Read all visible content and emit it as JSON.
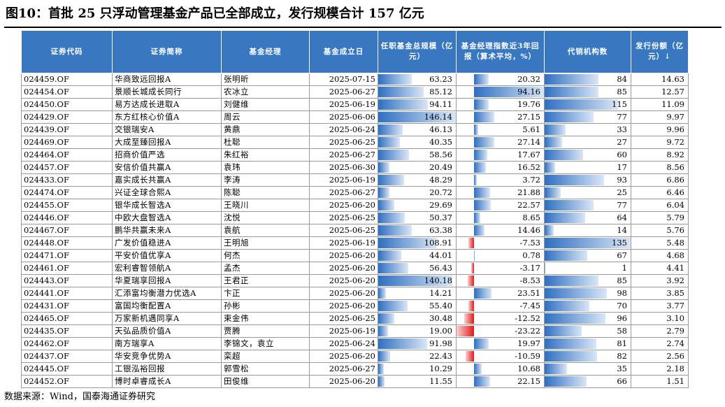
{
  "title": "图10：首批 25 只浮动管理基金产品已全部成立，发行规模合计 157 亿元",
  "source": "数据来源：Wind，国泰海通证券研究",
  "colors": {
    "header_bg": "#3978c1",
    "bar_positive": "#2f6fc2",
    "bar_negative": "#e31a1a"
  },
  "headers": {
    "code": "证券代码",
    "name": "证券简称",
    "manager": "基金经理",
    "date": "基金成立日",
    "aum": "任职基金总规模（亿元）",
    "ret": "基金经理指数近3年回报（算术平均，%）",
    "agencies": "代销机构数",
    "issue": "发行份额（亿元）↓"
  },
  "rows": [
    {
      "code": "024459.OF",
      "name": "华商致远回报A",
      "manager": "张明昕",
      "date": "2025-07-15",
      "aum": "63.23",
      "ret": "20.32",
      "agencies": "84",
      "issue": "14.63"
    },
    {
      "code": "024454.OF",
      "name": "景顺长城成长同行",
      "manager": "农冰立",
      "date": "2025-06-27",
      "aum": "85.12",
      "ret": "94.16",
      "agencies": "85",
      "issue": "12.57"
    },
    {
      "code": "024450.OF",
      "name": "易方达成长进取A",
      "manager": "刘健维",
      "date": "2025-06-19",
      "aum": "94.11",
      "ret": "19.76",
      "agencies": "115",
      "issue": "11.09"
    },
    {
      "code": "024429.OF",
      "name": "东方红核心价值A",
      "manager": "周云",
      "date": "2025-06-06",
      "aum": "146.14",
      "ret": "27.15",
      "agencies": "77",
      "issue": "9.97"
    },
    {
      "code": "024439.OF",
      "name": "交银瑞安A",
      "manager": "黄鼎",
      "date": "2025-06-24",
      "aum": "46.13",
      "ret": "5.61",
      "agencies": "33",
      "issue": "9.96"
    },
    {
      "code": "024469.OF",
      "name": "大成至臻回报A",
      "manager": "杜聪",
      "date": "2025-06-25",
      "aum": "40.35",
      "ret": "27.14",
      "agencies": "27",
      "issue": "9.72"
    },
    {
      "code": "024464.OF",
      "name": "招商价值严选",
      "manager": "朱红裕",
      "date": "2025-06-27",
      "aum": "58.56",
      "ret": "17.67",
      "agencies": "60",
      "issue": "8.92"
    },
    {
      "code": "024457.OF",
      "name": "安信价值共赢A",
      "manager": "袁玮",
      "date": "2025-06-30",
      "aum": "20.49",
      "ret": "16.52",
      "agencies": "17",
      "issue": "8.56"
    },
    {
      "code": "024433.OF",
      "name": "嘉实成长共赢A",
      "manager": "李涛",
      "date": "2025-06-19",
      "aum": "48.29",
      "ret": "3.72",
      "agencies": "93",
      "issue": "6.86"
    },
    {
      "code": "024474.OF",
      "name": "兴证全球合熙A",
      "manager": "陈聪",
      "date": "2025-06-27",
      "aum": "20.72",
      "ret": "21.88",
      "agencies": "25",
      "issue": "6.46"
    },
    {
      "code": "024455.OF",
      "name": "银华成长智选A",
      "manager": "王晓川",
      "date": "2025-06-20",
      "aum": "29.69",
      "ret": "22.57",
      "agencies": "77",
      "issue": "6.04"
    },
    {
      "code": "024446.OF",
      "name": "中欧大盘智选A",
      "manager": "沈悦",
      "date": "2025-06-25",
      "aum": "50.37",
      "ret": "8.65",
      "agencies": "64",
      "issue": "5.79"
    },
    {
      "code": "024467.OF",
      "name": "鹏华共赢未来A",
      "manager": "袁航",
      "date": "2025-06-25",
      "aum": "63.38",
      "ret": "14.46",
      "agencies": "14",
      "issue": "5.76"
    },
    {
      "code": "024448.OF",
      "name": "广发价值稳进A",
      "manager": "王明旭",
      "date": "2025-06-19",
      "aum": "108.91",
      "ret": "-7.53",
      "agencies": "135",
      "issue": "5.48"
    },
    {
      "code": "024471.OF",
      "name": "平安价值优享A",
      "manager": "何杰",
      "date": "2025-06-20",
      "aum": "44.01",
      "ret": "0.78",
      "agencies": "67",
      "issue": "4.68"
    },
    {
      "code": "024461.OF",
      "name": "宏利睿智领航A",
      "manager": "孟杰",
      "date": "2025-06-20",
      "aum": "56.43",
      "ret": "-3.17",
      "agencies": "1",
      "issue": "4.41"
    },
    {
      "code": "024443.OF",
      "name": "华夏瑞享回报A",
      "manager": "王君正",
      "date": "2025-06-20",
      "aum": "140.18",
      "ret": "-8.53",
      "agencies": "85",
      "issue": "3.92"
    },
    {
      "code": "024441.OF",
      "name": "汇添富均衡潜力优选A",
      "manager": "卞正",
      "date": "2025-06-20",
      "aum": "14.21",
      "ret": "23.51",
      "agencies": "98",
      "issue": "3.85"
    },
    {
      "code": "024431.OF",
      "name": "富国均衡配置A",
      "manager": "孙彬",
      "date": "2025-06-20",
      "aum": "55.40",
      "ret": "-7.45",
      "agencies": "70",
      "issue": "3.77"
    },
    {
      "code": "024465.OF",
      "name": "万家新机遇同享A",
      "manager": "束金伟",
      "date": "2025-06-25",
      "aum": "30.48",
      "ret": "-12.52",
      "agencies": "96",
      "issue": "3.10"
    },
    {
      "code": "024435.OF",
      "name": "天弘品质价值A",
      "manager": "贾腾",
      "date": "2025-06-19",
      "aum": "19.00",
      "ret": "-23.22",
      "agencies": "58",
      "issue": "2.79"
    },
    {
      "code": "024462.OF",
      "name": "南方瑞享A",
      "manager": "李锦文，袁立",
      "date": "2025-06-24",
      "aum": "91.98",
      "ret": "19.97",
      "agencies": "81",
      "issue": "2.74"
    },
    {
      "code": "024437.OF",
      "name": "华安竞争优势A",
      "manager": "栾超",
      "date": "2025-06-20",
      "aum": "22.43",
      "ret": "-10.59",
      "agencies": "82",
      "issue": "2.56"
    },
    {
      "code": "024445.OF",
      "name": "工银泓裕回报",
      "manager": "郭雪松",
      "date": "2025-06-27",
      "aum": "10.29",
      "ret": "10.68",
      "agencies": "35",
      "issue": "2.18"
    },
    {
      "code": "024452.OF",
      "name": "博时卓睿成长A",
      "manager": "田俊维",
      "date": "2025-06-20",
      "aum": "11.55",
      "ret": "22.15",
      "agencies": "66",
      "issue": "1.51"
    }
  ]
}
